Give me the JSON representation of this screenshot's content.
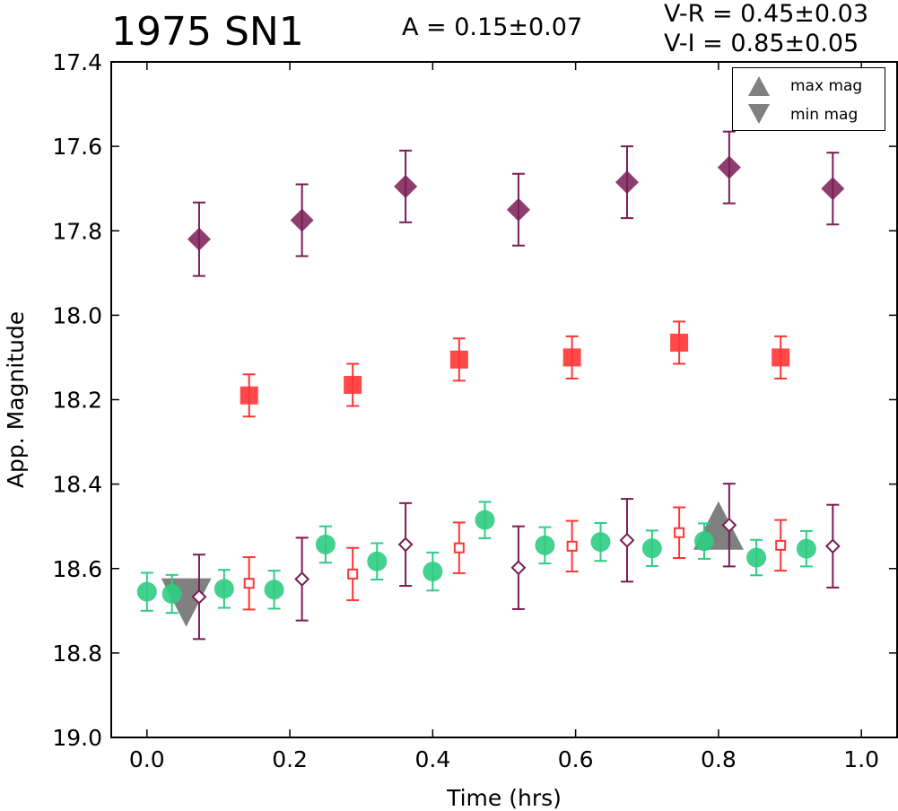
{
  "chart_data": {
    "type": "scatter",
    "title": "1975 SN1",
    "annotations": {
      "amplitude": "A  = 0.15±0.07",
      "v_r": "V-R = 0.45±0.03",
      "v_i": "V-I  = 0.85±0.05"
    },
    "xlabel": "Time (hrs)",
    "ylabel": "App. Magnitude",
    "xlim": [
      -0.05,
      1.05
    ],
    "ylim": [
      19.0,
      17.4
    ],
    "y_inverted": true,
    "xticks": [
      "0.0",
      "0.2",
      "0.4",
      "0.6",
      "0.8",
      "1.0"
    ],
    "yticks": [
      "17.4",
      "17.6",
      "17.8",
      "18.0",
      "18.2",
      "18.4",
      "18.6",
      "18.8",
      "19.0"
    ],
    "grid": false,
    "legend": {
      "position": "top-right",
      "entries": [
        "max mag",
        "min mag"
      ]
    },
    "series": [
      {
        "marker": "filled-diamond",
        "color": "#7a1c55",
        "points": [
          {
            "x": 0.073,
            "y": 17.82,
            "err": 0.087
          },
          {
            "x": 0.217,
            "y": 17.775,
            "err": 0.085
          },
          {
            "x": 0.362,
            "y": 17.695,
            "err": 0.085
          },
          {
            "x": 0.52,
            "y": 17.75,
            "err": 0.085
          },
          {
            "x": 0.672,
            "y": 17.685,
            "err": 0.085
          },
          {
            "x": 0.815,
            "y": 17.65,
            "err": 0.085
          },
          {
            "x": 0.96,
            "y": 17.7,
            "err": 0.085
          }
        ]
      },
      {
        "marker": "filled-square",
        "color": "#ff3535",
        "points": [
          {
            "x": 0.143,
            "y": 18.19,
            "err": 0.05
          },
          {
            "x": 0.288,
            "y": 18.165,
            "err": 0.05
          },
          {
            "x": 0.437,
            "y": 18.105,
            "err": 0.05
          },
          {
            "x": 0.595,
            "y": 18.1,
            "err": 0.05
          },
          {
            "x": 0.745,
            "y": 18.065,
            "err": 0.05
          },
          {
            "x": 0.887,
            "y": 18.1,
            "err": 0.05
          }
        ]
      },
      {
        "marker": "filled-circle",
        "color": "#2ecc82",
        "points": [
          {
            "x": 0.0,
            "y": 18.655,
            "err": 0.045
          },
          {
            "x": 0.035,
            "y": 18.66,
            "err": 0.045
          },
          {
            "x": 0.108,
            "y": 18.648,
            "err": 0.045
          },
          {
            "x": 0.178,
            "y": 18.65,
            "err": 0.045
          },
          {
            "x": 0.25,
            "y": 18.543,
            "err": 0.043
          },
          {
            "x": 0.322,
            "y": 18.583,
            "err": 0.043
          },
          {
            "x": 0.4,
            "y": 18.607,
            "err": 0.045
          },
          {
            "x": 0.473,
            "y": 18.485,
            "err": 0.043
          },
          {
            "x": 0.557,
            "y": 18.545,
            "err": 0.043
          },
          {
            "x": 0.635,
            "y": 18.537,
            "err": 0.045
          },
          {
            "x": 0.707,
            "y": 18.552,
            "err": 0.042
          },
          {
            "x": 0.78,
            "y": 18.535,
            "err": 0.042
          },
          {
            "x": 0.853,
            "y": 18.574,
            "err": 0.042
          },
          {
            "x": 0.923,
            "y": 18.553,
            "err": 0.042
          }
        ]
      },
      {
        "marker": "open-square",
        "color": "#ff3535",
        "points": [
          {
            "x": 0.143,
            "y": 18.635,
            "err": 0.062
          },
          {
            "x": 0.288,
            "y": 18.613,
            "err": 0.062
          },
          {
            "x": 0.437,
            "y": 18.551,
            "err": 0.06
          },
          {
            "x": 0.595,
            "y": 18.547,
            "err": 0.06
          },
          {
            "x": 0.745,
            "y": 18.515,
            "err": 0.06
          },
          {
            "x": 0.887,
            "y": 18.545,
            "err": 0.06
          }
        ]
      },
      {
        "marker": "open-diamond",
        "color": "#7a1c55",
        "points": [
          {
            "x": 0.073,
            "y": 18.667,
            "err": 0.1
          },
          {
            "x": 0.217,
            "y": 18.625,
            "err": 0.098
          },
          {
            "x": 0.362,
            "y": 18.543,
            "err": 0.098
          },
          {
            "x": 0.52,
            "y": 18.598,
            "err": 0.098
          },
          {
            "x": 0.672,
            "y": 18.533,
            "err": 0.098
          },
          {
            "x": 0.815,
            "y": 18.497,
            "err": 0.098
          },
          {
            "x": 0.96,
            "y": 18.547,
            "err": 0.098
          }
        ]
      }
    ],
    "extrema": {
      "color": "#808080",
      "max": {
        "x": 0.8,
        "y": 18.53
      },
      "min": {
        "x": 0.055,
        "y": 18.655
      }
    }
  }
}
